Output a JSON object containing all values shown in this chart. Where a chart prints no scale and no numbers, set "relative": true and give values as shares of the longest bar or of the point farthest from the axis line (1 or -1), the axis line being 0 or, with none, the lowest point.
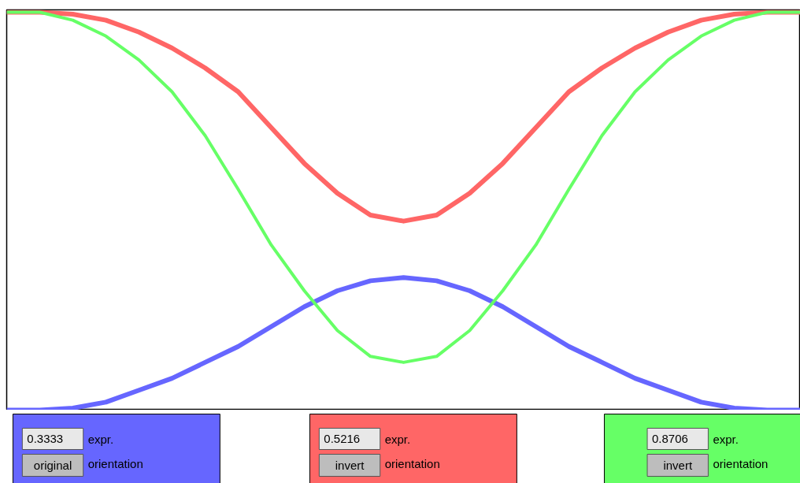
{
  "chart_data": {
    "type": "line",
    "relative": true,
    "categories": [
      null,
      null,
      null,
      null,
      null,
      null,
      null,
      null,
      null,
      null,
      null,
      null,
      null,
      null,
      null,
      null,
      null,
      null,
      null,
      null,
      null,
      null,
      null,
      null,
      null
    ],
    "series": [
      {
        "color": "#6666ff",
        "values": [
          0,
          0,
          0.005,
          0.02,
          0.05,
          0.08,
          0.12,
          0.16,
          0.21,
          0.26,
          0.3,
          0.325,
          0.333,
          0.325,
          0.3,
          0.26,
          0.21,
          0.16,
          0.12,
          0.08,
          0.05,
          0.02,
          0.005,
          0,
          0
        ]
      },
      {
        "color": "#ff6666",
        "values": [
          1,
          1,
          0.995,
          0.98,
          0.95,
          0.91,
          0.86,
          0.8,
          0.71,
          0.62,
          0.545,
          0.49,
          0.475,
          0.49,
          0.545,
          0.62,
          0.71,
          0.8,
          0.86,
          0.91,
          0.95,
          0.98,
          0.995,
          1,
          1
        ]
      },
      {
        "color": "#66ff66",
        "values": [
          1,
          1,
          0.98,
          0.94,
          0.88,
          0.8,
          0.69,
          0.555,
          0.415,
          0.3,
          0.2,
          0.135,
          0.12,
          0.135,
          0.2,
          0.3,
          0.415,
          0.555,
          0.69,
          0.8,
          0.88,
          0.94,
          0.98,
          1,
          1
        ]
      }
    ],
    "annotations": [
      "0.3333",
      "expr.",
      "original",
      "orientation",
      "0.5216",
      "expr.",
      "invert",
      "orientation",
      "0.8706",
      "expr.",
      "invert",
      "orientation"
    ]
  }
}
